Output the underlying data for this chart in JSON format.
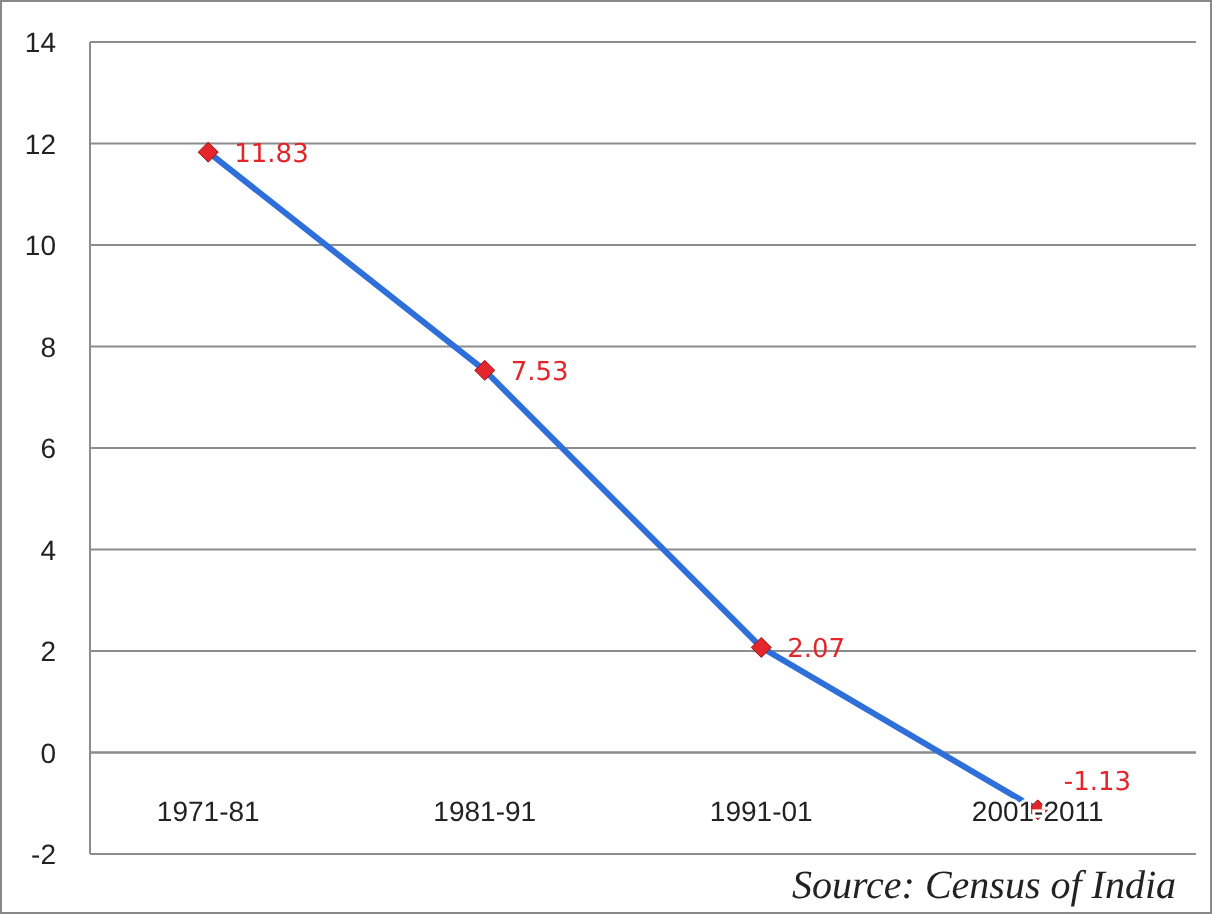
{
  "chart_data": {
    "type": "line",
    "categories": [
      "1971-81",
      "1981-91",
      "1991-01",
      "2001-2011"
    ],
    "series": [
      {
        "color": "#2e6fd9",
        "values": [
          11.83,
          7.53,
          2.07,
          -1.13
        ]
      }
    ],
    "ylim": [
      -2,
      14
    ],
    "yticks": [
      -2,
      0,
      2,
      4,
      6,
      8,
      10,
      12,
      14
    ],
    "grid": "y",
    "marker": "diamond",
    "line_style": "solid",
    "data_labels": true,
    "annotations": [
      "Source: Census of India"
    ]
  }
}
